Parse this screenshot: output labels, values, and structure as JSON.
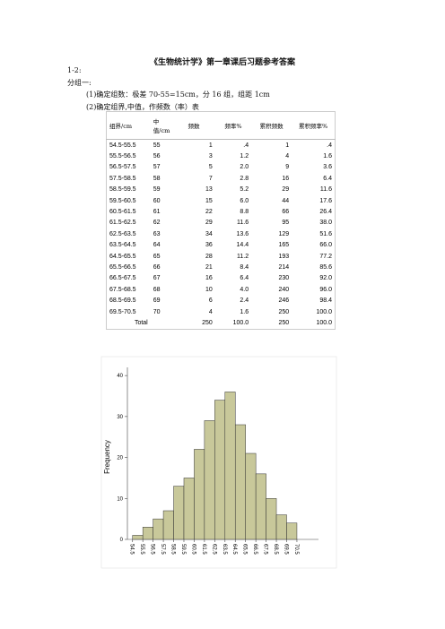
{
  "header": {
    "title": "《生物统计学》第一章课后习题参考答案"
  },
  "lines": [
    "1-2:",
    "分组一:",
    "(1)确定组数：极差 70-55=15cm，分 16 组，组距 1cm",
    "(2)确定组界,中值，作频数（率）表"
  ],
  "table": {
    "headers": [
      "组界/cm",
      "中值/cm",
      "频数",
      "频率%",
      "累积频数",
      "累积频率%"
    ],
    "rows": [
      [
        "54.5-55.5",
        "55",
        "1",
        ".4",
        "1",
        ".4"
      ],
      [
        "55.5-56.5",
        "56",
        "3",
        "1.2",
        "4",
        "1.6"
      ],
      [
        "56.5-57.5",
        "57",
        "5",
        "2.0",
        "9",
        "3.6"
      ],
      [
        "57.5-58.5",
        "58",
        "7",
        "2.8",
        "16",
        "6.4"
      ],
      [
        "58.5-59.5",
        "59",
        "13",
        "5.2",
        "29",
        "11.6"
      ],
      [
        "59.5-60.5",
        "60",
        "15",
        "6.0",
        "44",
        "17.6"
      ],
      [
        "60.5-61.5",
        "61",
        "22",
        "8.8",
        "66",
        "26.4"
      ],
      [
        "61.5-62.5",
        "62",
        "29",
        "11.6",
        "95",
        "38.0"
      ],
      [
        "62.5-63.5",
        "63",
        "34",
        "13.6",
        "129",
        "51.6"
      ],
      [
        "63.5-64.5",
        "64",
        "36",
        "14.4",
        "165",
        "66.0"
      ],
      [
        "64.5-65.5",
        "65",
        "28",
        "11.2",
        "193",
        "77.2"
      ],
      [
        "65.5-66.5",
        "66",
        "21",
        "8.4",
        "214",
        "85.6"
      ],
      [
        "66.5-67.5",
        "67",
        "16",
        "6.4",
        "230",
        "92.0"
      ],
      [
        "67.5-68.5",
        "68",
        "10",
        "4.0",
        "240",
        "96.0"
      ],
      [
        "68.5-69.5",
        "69",
        "6",
        "2.4",
        "246",
        "98.4"
      ],
      [
        "69.5-70.5",
        "70",
        "4",
        "1.6",
        "250",
        "100.0"
      ],
      [
        "Total",
        "",
        "250",
        "100.0",
        "250",
        "100.0"
      ]
    ]
  },
  "chart_data": {
    "type": "histogram",
    "ylabel": "Frequency",
    "bins": [
      54.5,
      55.5,
      56.5,
      57.5,
      58.5,
      59.5,
      60.5,
      61.5,
      62.5,
      63.5,
      64.5,
      65.5,
      66.5,
      67.5,
      68.5,
      69.5,
      70.5
    ],
    "values": [
      1,
      3,
      5,
      7,
      13,
      15,
      22,
      29,
      34,
      36,
      28,
      21,
      16,
      10,
      6,
      4
    ],
    "color": "#c8c89a",
    "xlim": [
      54,
      72.6
    ],
    "ylim": [
      0,
      42
    ],
    "yticks": [
      0,
      10,
      20,
      30,
      40
    ]
  }
}
